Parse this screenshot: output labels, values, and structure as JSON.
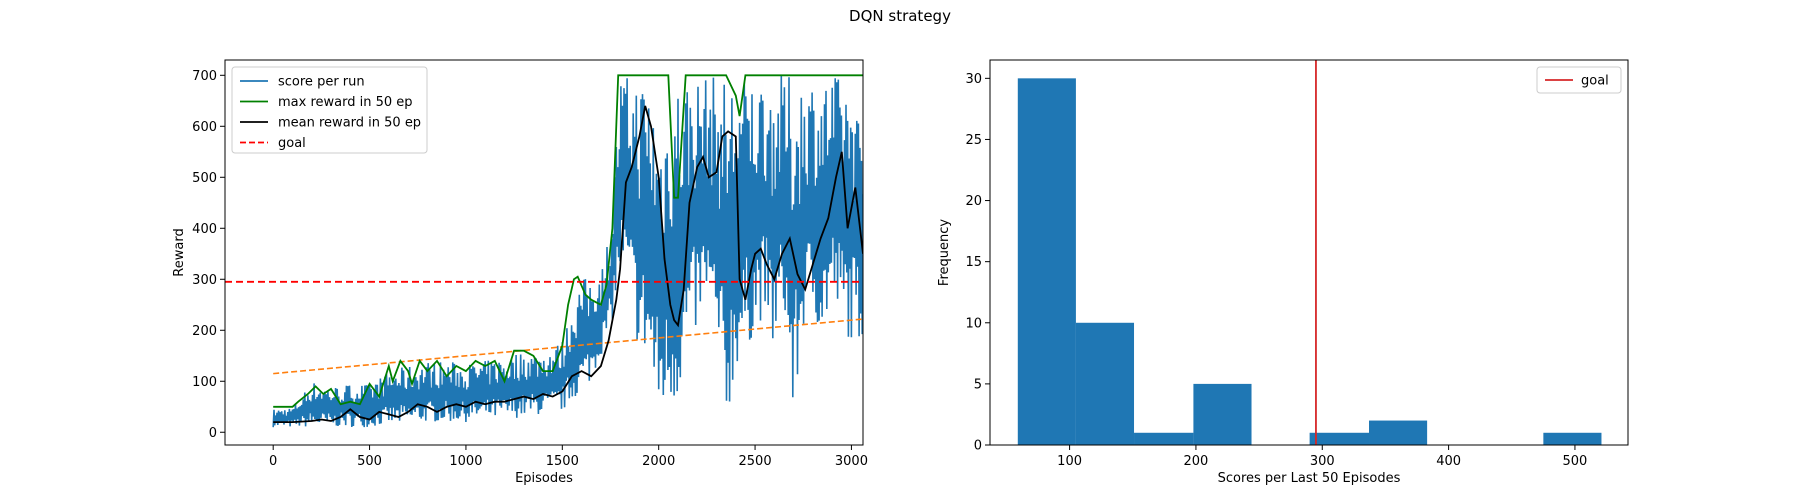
{
  "figure": {
    "suptitle": "DQN strategy"
  },
  "colors": {
    "score": "#1f77b4",
    "max": "#008000",
    "mean": "#000000",
    "goal": "#ff0000",
    "trend": "#ff7f0e",
    "hist_bar": "#1f77b4",
    "hist_goal": "#d62728"
  },
  "chart_data": [
    {
      "type": "line",
      "title": "",
      "xlabel": "Episodes",
      "ylabel": "Reward",
      "xlim": [
        -250,
        3060
      ],
      "ylim": [
        -25,
        730
      ],
      "xticks": [
        0,
        500,
        1000,
        1500,
        2000,
        2500,
        3000
      ],
      "yticks": [
        0,
        100,
        200,
        300,
        400,
        500,
        600,
        700
      ],
      "legend": {
        "placement": "top-left",
        "entries": [
          "score per run",
          "max reward in 50 ep",
          "mean reward in 50 ep",
          "goal"
        ]
      },
      "goal": 295,
      "trend_line": {
        "x": [
          0,
          3060
        ],
        "y": [
          115,
          222
        ]
      },
      "series": [
        {
          "name": "score per run",
          "style": "solid",
          "color_key": "score",
          "x": [
            0,
            100,
            200,
            300,
            400,
            500,
            600,
            700,
            800,
            900,
            1000,
            1100,
            1200,
            1300,
            1400,
            1500,
            1550,
            1600,
            1650,
            1700,
            1750,
            1800,
            1850,
            1900,
            1950,
            2000,
            2050,
            2100,
            2150,
            2200,
            2250,
            2300,
            2350,
            2400,
            2450,
            2500,
            2550,
            2600,
            2650,
            2700,
            2750,
            2800,
            2850,
            2900,
            2950,
            3000,
            3060
          ],
          "y_low": [
            10,
            10,
            10,
            10,
            10,
            10,
            15,
            15,
            20,
            20,
            20,
            25,
            25,
            30,
            35,
            40,
            60,
            80,
            100,
            150,
            200,
            300,
            250,
            150,
            120,
            20,
            40,
            60,
            150,
            200,
            250,
            150,
            10,
            120,
            150,
            200,
            230,
            150,
            240,
            10,
            200,
            230,
            180,
            250,
            200,
            180,
            180
          ],
          "y_high": [
            45,
            50,
            100,
            90,
            95,
            95,
            120,
            130,
            140,
            140,
            135,
            140,
            150,
            160,
            160,
            180,
            250,
            300,
            310,
            320,
            400,
            700,
            700,
            700,
            700,
            600,
            650,
            700,
            700,
            700,
            700,
            700,
            700,
            700,
            700,
            700,
            700,
            700,
            700,
            700,
            700,
            700,
            700,
            700,
            700,
            700,
            570
          ]
        },
        {
          "name": "max reward in 50 ep",
          "color_key": "max",
          "x": [
            0,
            100,
            130,
            180,
            220,
            260,
            300,
            350,
            400,
            450,
            500,
            550,
            600,
            620,
            660,
            700,
            720,
            760,
            800,
            850,
            900,
            950,
            1000,
            1050,
            1100,
            1150,
            1200,
            1250,
            1300,
            1350,
            1400,
            1450,
            1500,
            1530,
            1560,
            1580,
            1620,
            1650,
            1700,
            1730,
            1760,
            1790,
            1800,
            1850,
            1900,
            1950,
            2000,
            2050,
            2080,
            2100,
            2140,
            2160,
            2200,
            2250,
            2300,
            2350,
            2400,
            2420,
            2450,
            2500,
            2600,
            2700,
            2800,
            2900,
            3060
          ],
          "y": [
            50,
            50,
            60,
            75,
            90,
            75,
            85,
            55,
            60,
            55,
            95,
            70,
            130,
            100,
            140,
            120,
            95,
            140,
            120,
            140,
            110,
            130,
            120,
            140,
            130,
            140,
            100,
            160,
            160,
            150,
            120,
            120,
            170,
            250,
            300,
            305,
            270,
            260,
            250,
            290,
            400,
            700,
            700,
            700,
            700,
            700,
            700,
            700,
            460,
            460,
            700,
            700,
            700,
            700,
            700,
            700,
            660,
            620,
            700,
            700,
            700,
            700,
            700,
            700,
            700
          ]
        },
        {
          "name": "mean reward in 50 ep",
          "color_key": "mean",
          "x": [
            0,
            100,
            200,
            250,
            300,
            350,
            400,
            450,
            500,
            550,
            600,
            650,
            700,
            750,
            800,
            850,
            900,
            950,
            1000,
            1050,
            1100,
            1150,
            1200,
            1250,
            1300,
            1350,
            1400,
            1450,
            1500,
            1550,
            1600,
            1650,
            1700,
            1740,
            1780,
            1800,
            1830,
            1860,
            1900,
            1930,
            1960,
            2000,
            2030,
            2060,
            2080,
            2100,
            2130,
            2160,
            2200,
            2230,
            2260,
            2300,
            2330,
            2360,
            2400,
            2420,
            2450,
            2480,
            2500,
            2530,
            2560,
            2600,
            2640,
            2680,
            2720,
            2760,
            2800,
            2840,
            2880,
            2920,
            2950,
            2980,
            3020,
            3060
          ],
          "y": [
            20,
            20,
            22,
            25,
            22,
            30,
            45,
            30,
            25,
            40,
            35,
            30,
            40,
            55,
            50,
            40,
            50,
            55,
            50,
            60,
            55,
            60,
            60,
            65,
            70,
            65,
            75,
            70,
            80,
            110,
            120,
            110,
            130,
            180,
            260,
            320,
            490,
            520,
            580,
            640,
            600,
            500,
            340,
            250,
            220,
            210,
            280,
            450,
            520,
            540,
            500,
            510,
            580,
            590,
            580,
            300,
            260,
            320,
            350,
            360,
            330,
            300,
            350,
            380,
            310,
            280,
            330,
            380,
            420,
            500,
            550,
            400,
            480,
            350
          ]
        },
        {
          "name": "goal",
          "style": "dashed",
          "color_key": "goal",
          "x": [
            -250,
            3060
          ],
          "y": [
            295,
            295
          ]
        }
      ]
    },
    {
      "type": "bar",
      "subtype": "histogram",
      "title": "",
      "xlabel": "Scores per Last 50 Episodes",
      "ylabel": "Frequency",
      "xlim": [
        37,
        542
      ],
      "ylim": [
        0,
        31.5
      ],
      "xticks": [
        100,
        200,
        300,
        400,
        500
      ],
      "yticks": [
        0,
        5,
        10,
        15,
        20,
        25,
        30
      ],
      "bin_edges": [
        59,
        105,
        151,
        198,
        244,
        290,
        337,
        383,
        429,
        475,
        521
      ],
      "values": [
        30,
        10,
        1,
        5,
        0,
        1,
        2,
        0,
        0,
        1
      ],
      "legend": {
        "placement": "top-right",
        "entries": [
          "goal"
        ]
      },
      "goal": 295
    }
  ]
}
